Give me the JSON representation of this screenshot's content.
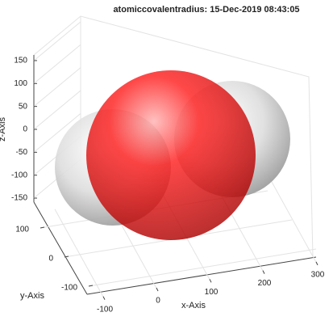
{
  "chart_data": {
    "type": "surface3d",
    "title": "atomiccovalentradius: 15-Dec-2019 08:43:05",
    "xlabel": "x-Axis",
    "ylabel": "y-Axis",
    "zlabel": "z-Axis",
    "xticks": [
      -100,
      0,
      100,
      200,
      300
    ],
    "yticks": [
      -100,
      0,
      100
    ],
    "zticks": [
      -150,
      -100,
      -50,
      0,
      50,
      100,
      150
    ],
    "grid": true
  }
}
